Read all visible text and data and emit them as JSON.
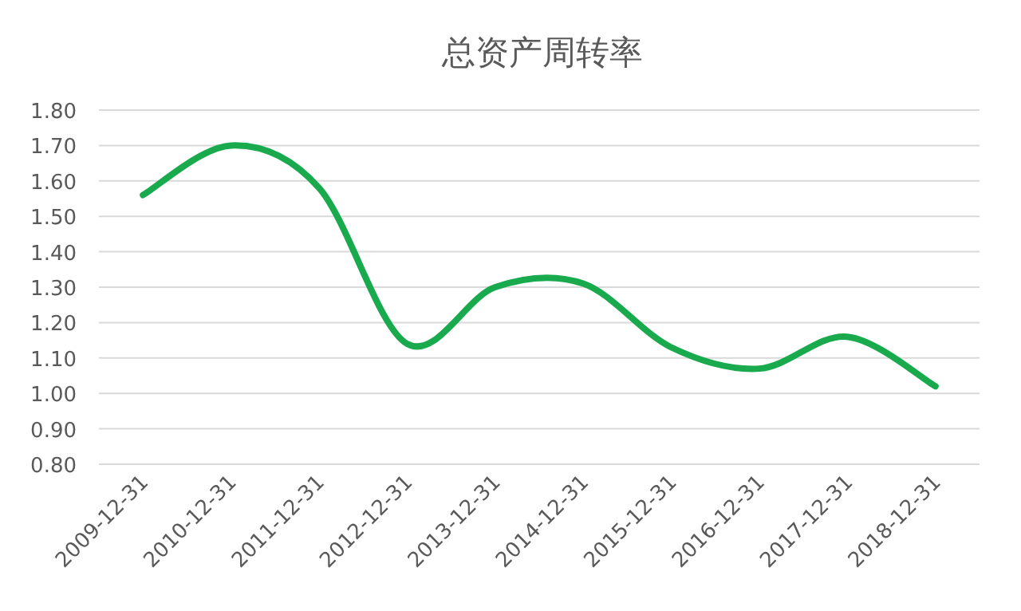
{
  "chart_data": {
    "type": "line",
    "title": "总资产周转率",
    "categories": [
      "2009-12-31",
      "2010-12-31",
      "2011-12-31",
      "2012-12-31",
      "2013-12-31",
      "2014-12-31",
      "2015-12-31",
      "2016-12-31",
      "2017-12-31",
      "2018-12-31"
    ],
    "series": [
      {
        "color": "#1aaa4e",
        "values": [
          1.56,
          1.7,
          1.58,
          1.14,
          1.3,
          1.31,
          1.13,
          1.07,
          1.16,
          1.02
        ]
      }
    ],
    "ylim": [
      0.8,
      1.8
    ],
    "yticks": [
      {
        "value": 0.8,
        "label": "0.80"
      },
      {
        "value": 0.9,
        "label": "0.90"
      },
      {
        "value": 1.0,
        "label": "1.00"
      },
      {
        "value": 1.1,
        "label": "1.10"
      },
      {
        "value": 1.2,
        "label": "1.20"
      },
      {
        "value": 1.3,
        "label": "1.30"
      },
      {
        "value": 1.4,
        "label": "1.40"
      },
      {
        "value": 1.5,
        "label": "1.50"
      },
      {
        "value": 1.6,
        "label": "1.60"
      },
      {
        "value": 1.7,
        "label": "1.70"
      },
      {
        "value": 1.8,
        "label": "1.80"
      }
    ],
    "grid": "y",
    "marker": "none",
    "line_style": "solid"
  }
}
